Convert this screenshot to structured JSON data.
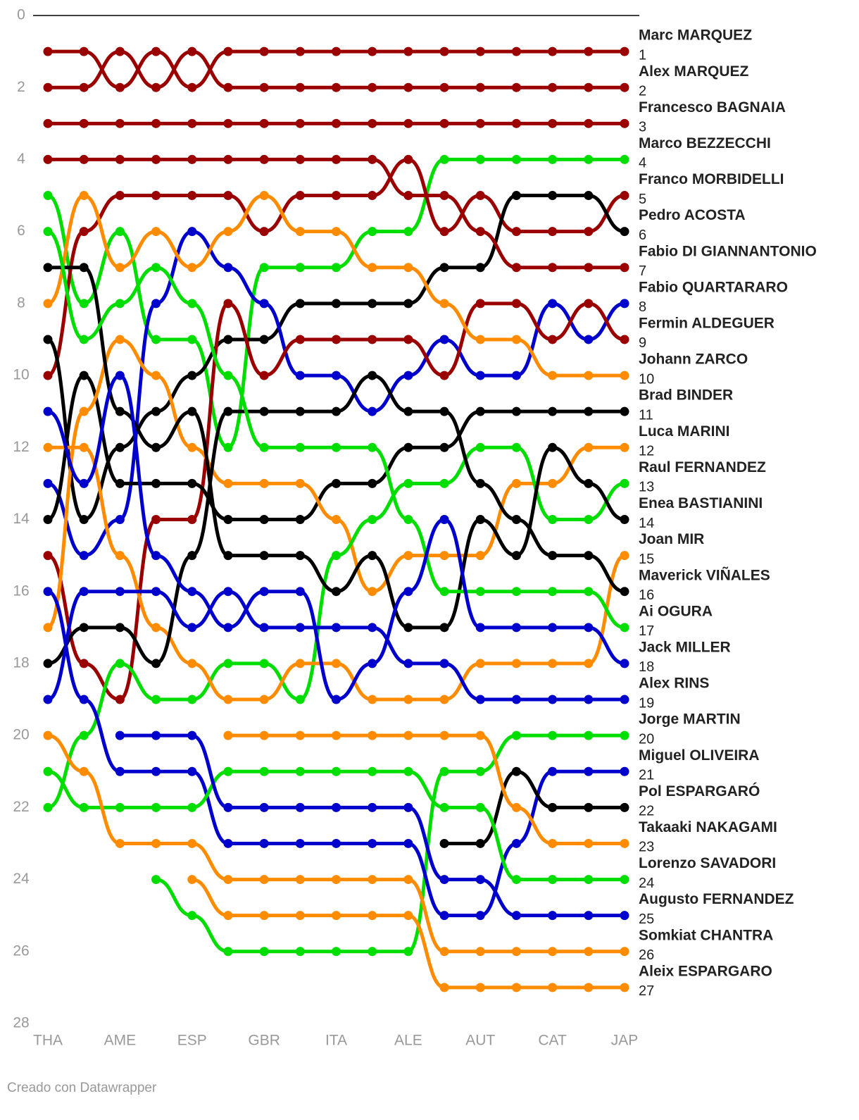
{
  "chart_data": {
    "type": "bump",
    "categories": [
      "THA",
      null,
      "AME",
      null,
      "ESP",
      null,
      "GBR",
      null,
      "ITA",
      null,
      "ALE",
      null,
      "AUT",
      null,
      "CAT",
      null,
      "JAP"
    ],
    "ylim": [
      0,
      28
    ],
    "yticks": [
      0,
      2,
      4,
      6,
      8,
      10,
      12,
      14,
      16,
      18,
      20,
      22,
      24,
      26,
      28
    ],
    "reversed": true,
    "series": [
      {
        "name": "Marc MARQUEZ",
        "color": "#9a0000",
        "values": [
          1,
          1,
          2,
          1,
          2,
          1,
          1,
          1,
          1,
          1,
          1,
          1,
          1,
          1,
          1,
          1,
          1
        ]
      },
      {
        "name": "Alex MARQUEZ",
        "color": "#9a0000",
        "values": [
          2,
          2,
          1,
          2,
          1,
          2,
          2,
          2,
          2,
          2,
          2,
          2,
          2,
          2,
          2,
          2,
          2
        ]
      },
      {
        "name": "Francesco BAGNAIA",
        "color": "#9a0000",
        "values": [
          3,
          3,
          3,
          3,
          3,
          3,
          3,
          3,
          3,
          3,
          3,
          3,
          3,
          3,
          3,
          3,
          3
        ]
      },
      {
        "name": "Marco BEZZECCHI",
        "color": "#00dd00",
        "values": [
          5,
          8,
          6,
          9,
          9,
          12,
          7,
          7,
          7,
          6,
          6,
          4,
          4,
          4,
          4,
          4,
          4
        ]
      },
      {
        "name": "Franco MORBIDELLI",
        "color": "#9a0000",
        "values": [
          10,
          6,
          5,
          5,
          5,
          5,
          6,
          5,
          5,
          5,
          4,
          6,
          5,
          6,
          6,
          6,
          5
        ]
      },
      {
        "name": "Pedro ACOSTA",
        "color": "#000000",
        "values": [
          9,
          14,
          12,
          11,
          10,
          9,
          9,
          8,
          8,
          8,
          8,
          7,
          7,
          5,
          5,
          5,
          6
        ]
      },
      {
        "name": "Fabio DI GIANNANTONIO",
        "color": "#9a0000",
        "values": [
          4,
          4,
          4,
          4,
          4,
          4,
          4,
          4,
          4,
          4,
          5,
          5,
          6,
          7,
          7,
          7,
          7
        ]
      },
      {
        "name": "Fabio QUARTARARO",
        "color": "#0000cc",
        "values": [
          13,
          15,
          14,
          8,
          6,
          7,
          8,
          10,
          10,
          11,
          10,
          9,
          10,
          10,
          8,
          9,
          8
        ]
      },
      {
        "name": "Fermin ALDEGUER",
        "color": "#9a0000",
        "values": [
          15,
          18,
          19,
          14,
          14,
          8,
          10,
          9,
          9,
          9,
          9,
          10,
          8,
          8,
          9,
          8,
          9
        ]
      },
      {
        "name": "Johann ZARCO",
        "color": "#ff8c00",
        "values": [
          8,
          5,
          7,
          6,
          7,
          6,
          5,
          6,
          6,
          7,
          7,
          8,
          9,
          9,
          10,
          10,
          10
        ]
      },
      {
        "name": "Brad BINDER",
        "color": "#000000",
        "values": [
          14,
          10,
          13,
          13,
          13,
          14,
          14,
          14,
          13,
          13,
          12,
          12,
          11,
          11,
          11,
          11,
          11
        ]
      },
      {
        "name": "Luca MARINI",
        "color": "#ff8c00",
        "values": [
          17,
          11,
          9,
          10,
          12,
          13,
          13,
          13,
          14,
          16,
          15,
          15,
          15,
          13,
          13,
          12,
          12
        ]
      },
      {
        "name": "Raul FERNANDEZ",
        "color": "#00dd00",
        "values": [
          22,
          20,
          18,
          19,
          19,
          18,
          18,
          19,
          15,
          14,
          13,
          13,
          12,
          12,
          14,
          14,
          13
        ]
      },
      {
        "name": "Enea BASTIANINI",
        "color": "#000000",
        "values": [
          7,
          7,
          11,
          12,
          11,
          15,
          15,
          15,
          16,
          15,
          17,
          17,
          14,
          15,
          12,
          13,
          14
        ]
      },
      {
        "name": "Joan MIR",
        "color": "#ff8c00",
        "values": [
          12,
          12,
          15,
          17,
          18,
          19,
          19,
          18,
          18,
          19,
          19,
          19,
          18,
          18,
          18,
          18,
          15
        ]
      },
      {
        "name": "Maverick VIÑALES",
        "color": "#000000",
        "values": [
          18,
          17,
          17,
          18,
          15,
          11,
          11,
          11,
          11,
          10,
          11,
          11,
          13,
          14,
          15,
          15,
          16
        ]
      },
      {
        "name": "Ai OGURA",
        "color": "#00dd00",
        "values": [
          6,
          9,
          8,
          7,
          8,
          10,
          12,
          12,
          12,
          12,
          14,
          16,
          16,
          16,
          16,
          16,
          17
        ]
      },
      {
        "name": "Jack MILLER",
        "color": "#0000cc",
        "values": [
          11,
          13,
          10,
          15,
          16,
          17,
          16,
          16,
          19,
          18,
          16,
          14,
          17,
          17,
          17,
          17,
          18
        ]
      },
      {
        "name": "Alex RINS",
        "color": "#0000cc",
        "values": [
          19,
          16,
          16,
          16,
          17,
          16,
          17,
          17,
          17,
          17,
          18,
          18,
          19,
          19,
          19,
          19,
          19
        ]
      },
      {
        "name": "Jorge MARTIN",
        "color": "#00dd00",
        "values": [
          null,
          null,
          null,
          24,
          25,
          26,
          26,
          26,
          26,
          26,
          26,
          21,
          21,
          20,
          20,
          20,
          20
        ]
      },
      {
        "name": "Miguel OLIVEIRA",
        "color": "#0000cc",
        "values": [
          16,
          19,
          21,
          21,
          21,
          23,
          23,
          23,
          23,
          23,
          23,
          25,
          25,
          23,
          21,
          21,
          21
        ]
      },
      {
        "name": "Pol ESPARGARÓ",
        "color": "#000000",
        "values": [
          null,
          null,
          null,
          null,
          null,
          null,
          null,
          null,
          null,
          null,
          null,
          23,
          23,
          21,
          22,
          22,
          22
        ]
      },
      {
        "name": "Takaaki NAKAGAMI",
        "color": "#ff8c00",
        "values": [
          null,
          null,
          null,
          null,
          null,
          20,
          20,
          20,
          20,
          20,
          20,
          20,
          20,
          22,
          23,
          23,
          23
        ]
      },
      {
        "name": "Lorenzo SAVADORI",
        "color": "#00dd00",
        "values": [
          21,
          22,
          22,
          22,
          22,
          21,
          21,
          21,
          21,
          21,
          21,
          22,
          22,
          24,
          24,
          24,
          24
        ]
      },
      {
        "name": "Augusto FERNANDEZ",
        "color": "#0000cc",
        "values": [
          null,
          null,
          20,
          20,
          20,
          22,
          22,
          22,
          22,
          22,
          22,
          24,
          24,
          25,
          25,
          25,
          25
        ]
      },
      {
        "name": "Somkiat CHANTRA",
        "color": "#ff8c00",
        "values": [
          20,
          21,
          23,
          23,
          23,
          24,
          24,
          24,
          24,
          24,
          24,
          26,
          26,
          26,
          26,
          26,
          26
        ]
      },
      {
        "name": "Aleix ESPARGARO",
        "color": "#ff8c00",
        "values": [
          null,
          null,
          null,
          null,
          24,
          25,
          25,
          25,
          25,
          25,
          25,
          27,
          27,
          27,
          27,
          27,
          27
        ]
      }
    ],
    "footer": "Creado con Datawrapper"
  }
}
